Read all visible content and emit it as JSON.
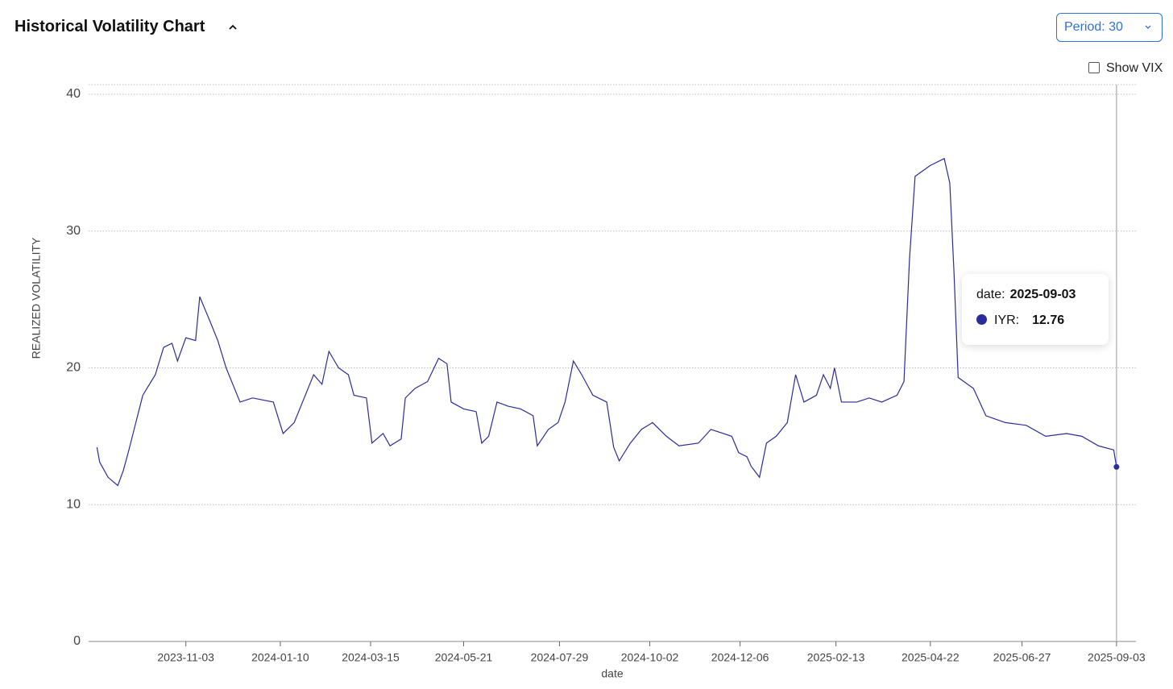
{
  "header": {
    "title": "Historical Volatility Chart",
    "period": "Period: 30",
    "vix_toggle": "Show VIX"
  },
  "chart_data": {
    "type": "line",
    "y_label": "REALIZED VOLATILITY",
    "x_label": "date",
    "xlim": [
      "2023-08-25",
      "2025-09-17"
    ],
    "xticks": [
      "2023-11-03",
      "2024-01-10",
      "2024-03-15",
      "2024-05-21",
      "2024-07-29",
      "2024-10-02",
      "2024-12-06",
      "2025-02-13",
      "2025-04-22",
      "2025-06-27",
      "2025-09-03"
    ],
    "ylim": [
      0,
      40
    ],
    "yticks": [
      0,
      10,
      20,
      30,
      40
    ],
    "grid": true,
    "x": [
      "2023-08-31",
      "2023-09-02",
      "2023-09-08",
      "2023-09-15",
      "2023-09-19",
      "2023-09-23",
      "2023-09-28",
      "2023-10-03",
      "2023-10-12",
      "2023-10-18",
      "2023-10-24",
      "2023-10-28",
      "2023-11-03",
      "2023-11-10",
      "2023-11-13",
      "2023-11-20",
      "2023-11-26",
      "2023-12-02",
      "2023-12-12",
      "2023-12-21",
      "2024-01-05",
      "2024-01-12",
      "2024-01-20",
      "2024-01-26",
      "2024-02-03",
      "2024-02-09",
      "2024-02-14",
      "2024-02-21",
      "2024-02-28",
      "2024-03-03",
      "2024-03-12",
      "2024-03-16",
      "2024-03-24",
      "2024-03-29",
      "2024-04-06",
      "2024-04-09",
      "2024-04-16",
      "2024-04-25",
      "2024-05-03",
      "2024-05-09",
      "2024-05-12",
      "2024-05-21",
      "2024-05-30",
      "2024-06-03",
      "2024-06-08",
      "2024-06-14",
      "2024-06-22",
      "2024-07-01",
      "2024-07-10",
      "2024-07-13",
      "2024-07-21",
      "2024-07-28",
      "2024-08-02",
      "2024-08-08",
      "2024-08-14",
      "2024-08-22",
      "2024-09-01",
      "2024-09-06",
      "2024-09-10",
      "2024-09-18",
      "2024-09-26",
      "2024-10-04",
      "2024-10-14",
      "2024-10-23",
      "2024-11-06",
      "2024-11-15",
      "2024-11-30",
      "2024-12-05",
      "2024-12-11",
      "2024-12-14",
      "2024-12-20",
      "2024-12-25",
      "2025-01-01",
      "2025-01-09",
      "2025-01-15",
      "2025-01-21",
      "2025-01-30",
      "2025-02-04",
      "2025-02-09",
      "2025-02-12",
      "2025-02-17",
      "2025-02-28",
      "2025-03-09",
      "2025-03-18",
      "2025-03-29",
      "2025-04-03",
      "2025-04-07",
      "2025-04-11",
      "2025-04-22",
      "2025-05-02",
      "2025-05-06",
      "2025-05-09",
      "2025-05-12",
      "2025-05-23",
      "2025-06-01",
      "2025-06-15",
      "2025-06-30",
      "2025-07-14",
      "2025-07-29",
      "2025-08-09",
      "2025-08-21",
      "2025-09-01",
      "2025-09-03"
    ],
    "series": [
      {
        "color": "#2a2c9c",
        "values": [
          14.2,
          13.1,
          12.0,
          11.4,
          12.5,
          14.0,
          16.0,
          18.0,
          19.5,
          21.5,
          21.8,
          20.5,
          22.2,
          22.0,
          25.2,
          23.5,
          22.0,
          20.0,
          17.5,
          17.8,
          17.5,
          15.2,
          16.0,
          17.5,
          19.5,
          18.8,
          21.2,
          20.0,
          19.5,
          18.0,
          17.8,
          14.5,
          15.2,
          14.3,
          14.8,
          17.8,
          18.5,
          19.0,
          20.7,
          20.3,
          17.5,
          17.0,
          16.8,
          14.5,
          15.0,
          17.5,
          17.2,
          17.0,
          16.5,
          14.3,
          15.5,
          16.0,
          17.5,
          20.5,
          19.5,
          18.0,
          17.5,
          14.2,
          13.2,
          14.5,
          15.5,
          16.0,
          15.0,
          14.3,
          14.5,
          15.5,
          15.0,
          13.8,
          13.5,
          12.8,
          12.0,
          14.5,
          15.0,
          16.0,
          19.5,
          17.5,
          18.0,
          19.5,
          18.5,
          20.0,
          17.5,
          17.5,
          17.8,
          17.5,
          18.0,
          19.0,
          28.0,
          34.0,
          34.8,
          35.3,
          33.5,
          27.0,
          19.3,
          18.5,
          16.5,
          16.0,
          15.8,
          15.0,
          15.2,
          15.0,
          14.3,
          14.0,
          12.76
        ]
      }
    ],
    "tooltip": {
      "date_label": "date:",
      "series_label": "IYR:"
    }
  }
}
